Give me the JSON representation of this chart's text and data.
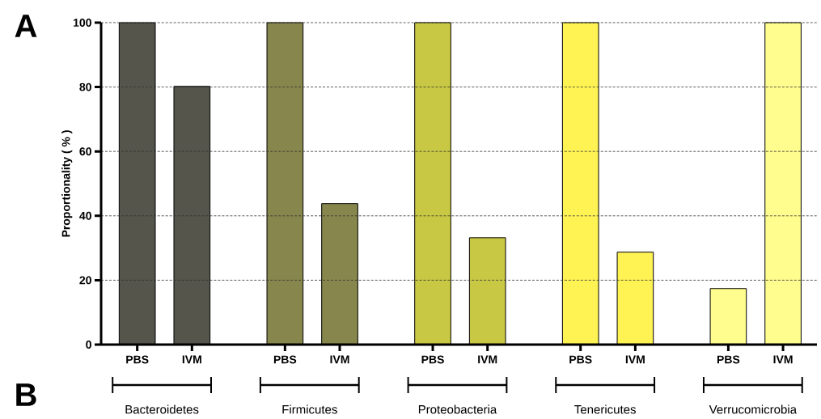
{
  "chart_data": {
    "type": "bar",
    "ylabel": "Proportionality ( % )",
    "categories": [
      "PBS",
      "IVM",
      "PBS",
      "IVM",
      "PBS",
      "IVM",
      "PBS",
      "IVM",
      "PBS",
      "IVM"
    ],
    "values": [
      100,
      80.2,
      100,
      43.8,
      100,
      33.2,
      100,
      28.7,
      17.4,
      100
    ],
    "colors": [
      "#55554b",
      "#55554b",
      "#87874d",
      "#87874d",
      "#c9c844",
      "#c9c844",
      "#fff354",
      "#fff354",
      "#fffd8e",
      "#fffd8e"
    ],
    "ylim": [
      0,
      100
    ],
    "yticks": [
      0,
      20,
      40,
      60,
      80,
      100
    ],
    "grid": "y",
    "annotations": [
      "A",
      "B",
      "Bacteroidetes",
      "Firmicutes",
      "Proteobacteria",
      "Tenericutes",
      "Verrucomicrobia"
    ]
  }
}
